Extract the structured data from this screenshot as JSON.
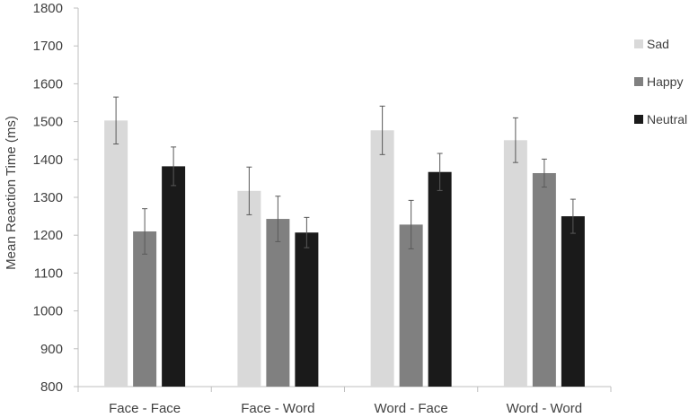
{
  "chart_data": {
    "type": "bar",
    "title": "",
    "xlabel": "",
    "ylabel": "Mean Reaction Time (ms)",
    "ylim": [
      800,
      1800
    ],
    "yticks": [
      800,
      900,
      1000,
      1100,
      1200,
      1300,
      1400,
      1500,
      1600,
      1700,
      1800
    ],
    "grid": false,
    "legend_position": "right",
    "categories": [
      "Face - Face",
      "Face - Word",
      "Word - Face",
      "Word - Word"
    ],
    "series": [
      {
        "name": "Sad",
        "color": "#d9d9d9",
        "values": [
          1503,
          1317,
          1477,
          1451
        ],
        "error": [
          62,
          63,
          64,
          59
        ]
      },
      {
        "name": "Happy",
        "color": "#808080",
        "values": [
          1210,
          1243,
          1228,
          1364
        ],
        "error": [
          60,
          60,
          64,
          37
        ]
      },
      {
        "name": "Neutral",
        "color": "#1a1a1a",
        "values": [
          1382,
          1207,
          1367,
          1250
        ],
        "error": [
          51,
          40,
          49,
          45
        ]
      }
    ]
  }
}
